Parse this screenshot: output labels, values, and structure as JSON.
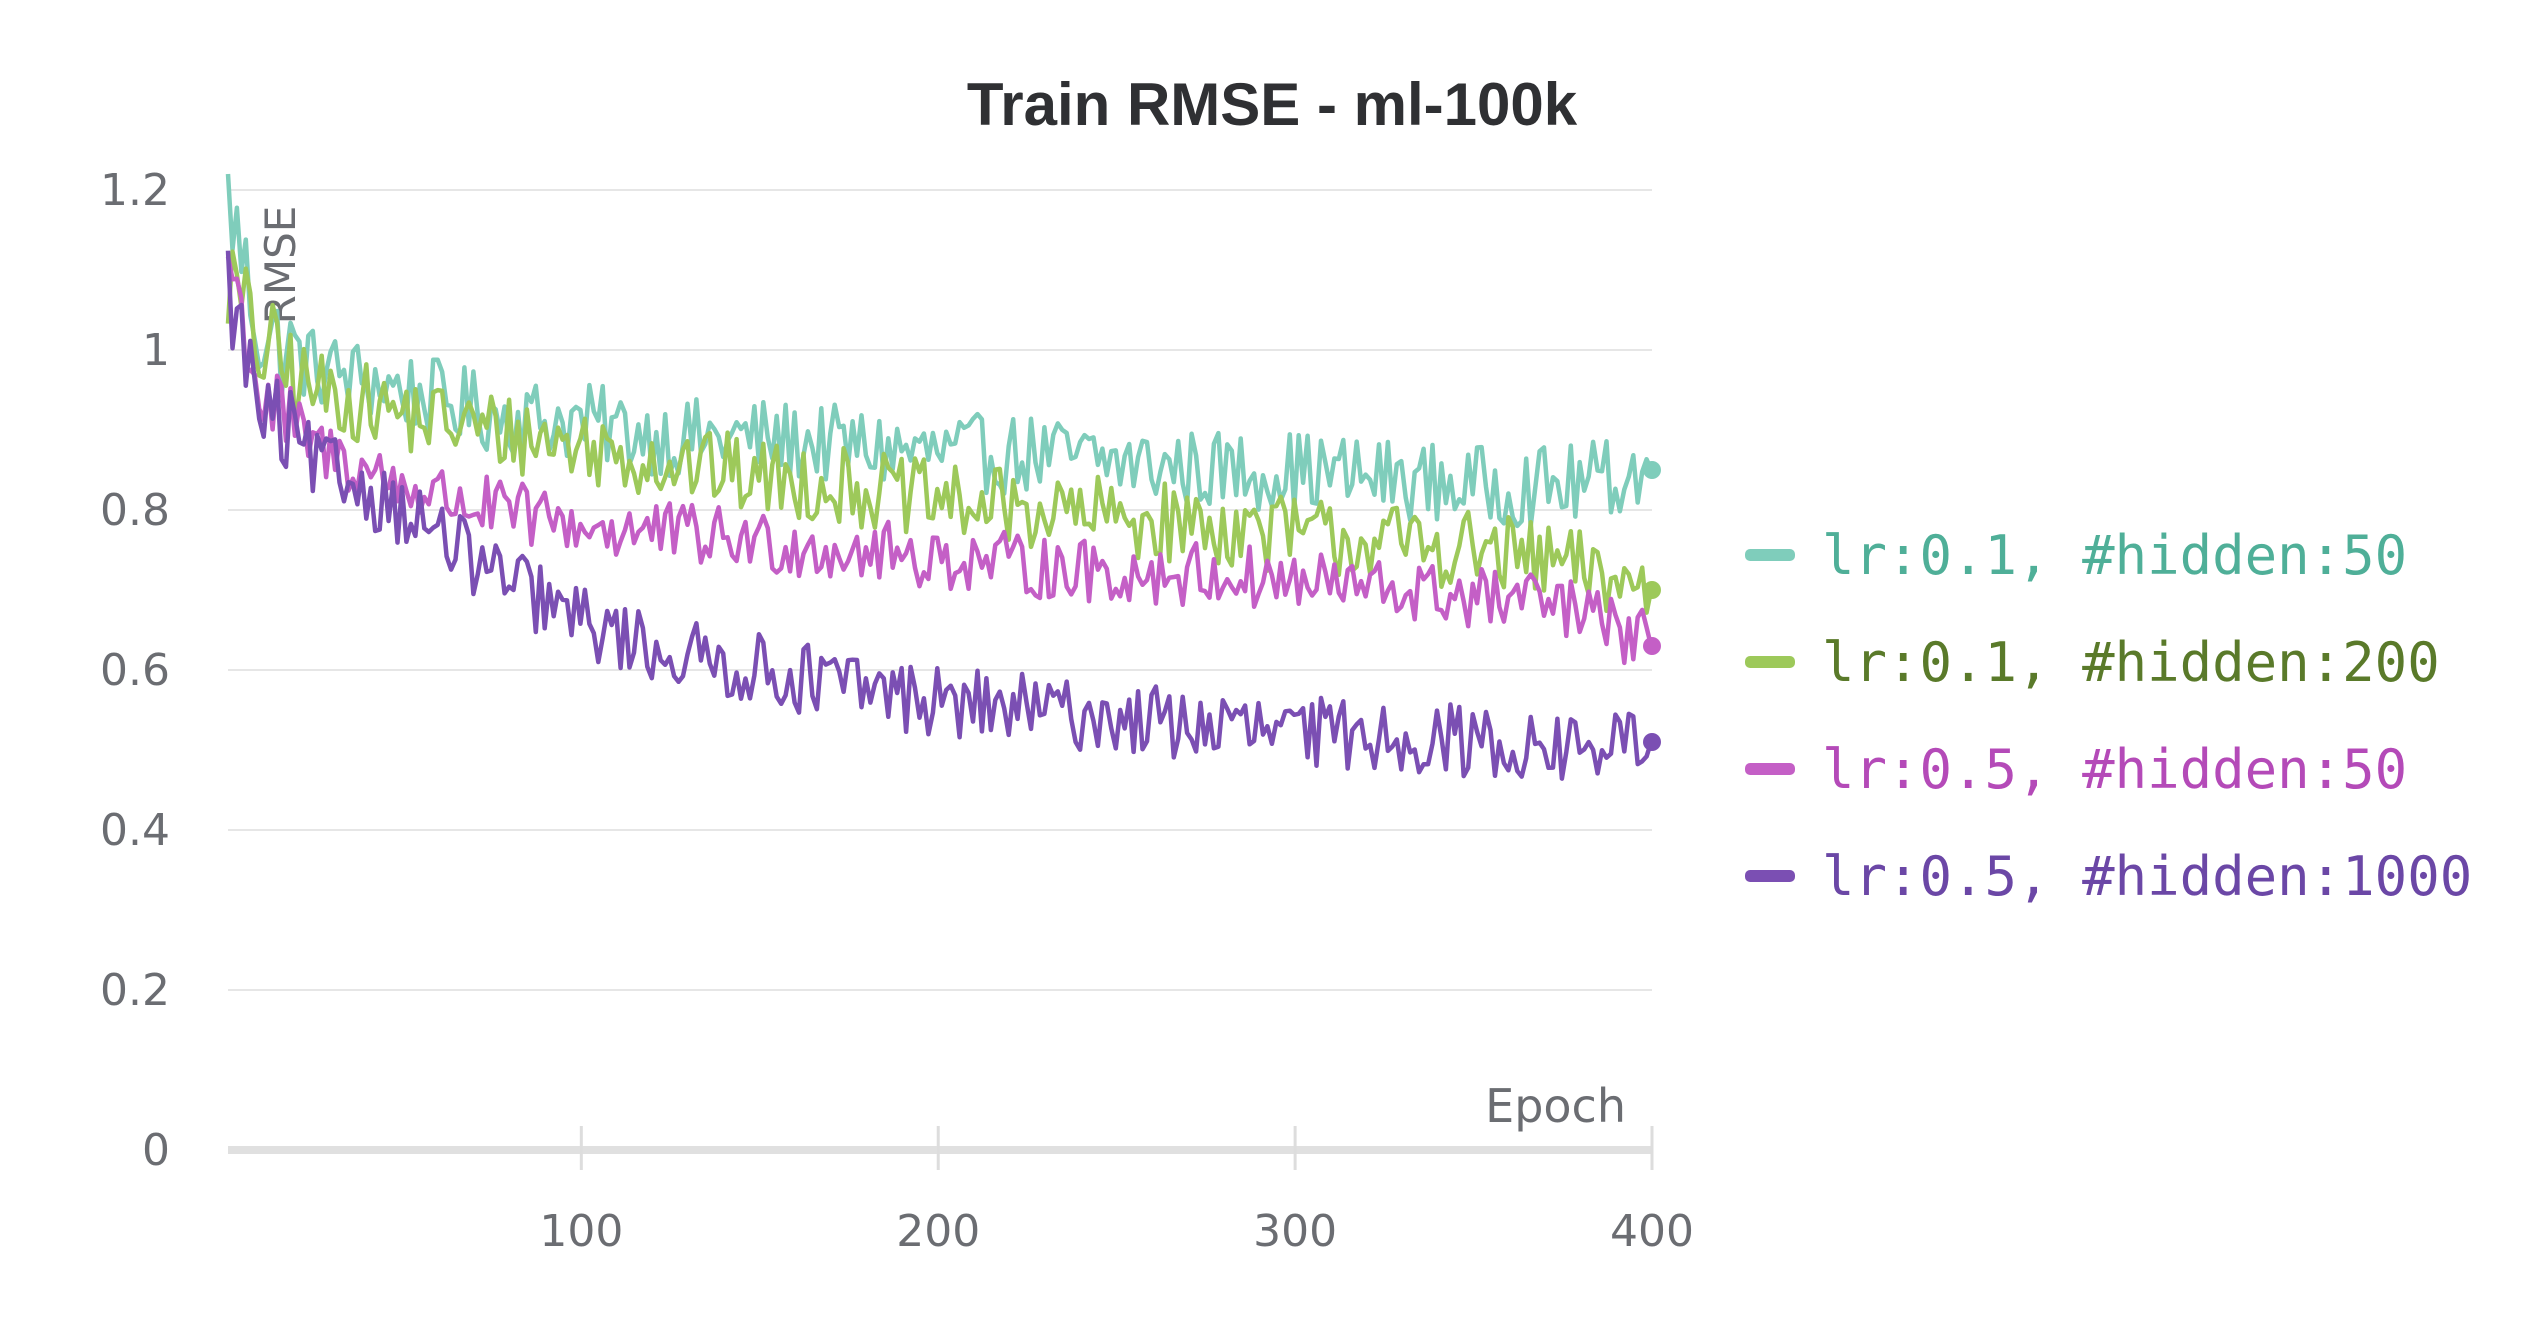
{
  "chart_data": {
    "type": "line",
    "title": "Train RMSE - ml-100k",
    "xlabel": "Epoch",
    "ylabel": "RMSE",
    "xlim": [
      1,
      400
    ],
    "ylim": [
      0,
      1.2
    ],
    "x_ticks": [
      100,
      200,
      300,
      400
    ],
    "x_tick_labels": [
      "100",
      "200",
      "300",
      "400"
    ],
    "y_ticks": [
      0,
      0.2,
      0.4,
      0.6,
      0.8,
      1,
      1.2
    ],
    "y_tick_labels": [
      "0",
      "0.2",
      "0.4",
      "0.6",
      "0.8",
      "1",
      "1.2"
    ],
    "grid": true,
    "legend_position": "right",
    "series": [
      {
        "name": "lr:0.1, #hidden:50",
        "color": "#7fcdbb",
        "text_color": "#4faf98",
        "x": [
          1,
          10,
          25,
          50,
          75,
          100,
          125,
          150,
          175,
          200,
          225,
          250,
          275,
          300,
          325,
          350,
          375,
          400
        ],
        "values": [
          1.19,
          1.02,
          0.98,
          0.95,
          0.92,
          0.91,
          0.89,
          0.89,
          0.88,
          0.87,
          0.87,
          0.86,
          0.85,
          0.85,
          0.84,
          0.83,
          0.83,
          0.85
        ]
      },
      {
        "name": "lr:0.1, #hidden:200",
        "color": "#9dc95a",
        "text_color": "#5a7a2a",
        "x": [
          1,
          10,
          25,
          50,
          75,
          100,
          125,
          150,
          175,
          200,
          225,
          250,
          275,
          300,
          325,
          350,
          375,
          400
        ],
        "values": [
          1.09,
          1.0,
          0.95,
          0.92,
          0.9,
          0.88,
          0.86,
          0.84,
          0.83,
          0.81,
          0.8,
          0.79,
          0.78,
          0.77,
          0.76,
          0.75,
          0.73,
          0.7
        ]
      },
      {
        "name": "lr:0.5, #hidden:50",
        "color": "#c45fc6",
        "text_color": "#b44ab8",
        "x": [
          1,
          10,
          25,
          50,
          75,
          100,
          125,
          150,
          175,
          200,
          225,
          250,
          275,
          300,
          325,
          350,
          375,
          400
        ],
        "values": [
          1.12,
          0.94,
          0.88,
          0.83,
          0.8,
          0.78,
          0.77,
          0.76,
          0.75,
          0.74,
          0.73,
          0.72,
          0.72,
          0.71,
          0.7,
          0.69,
          0.68,
          0.63
        ]
      },
      {
        "name": "lr:0.5, #hidden:1000",
        "color": "#7b4fb3",
        "text_color": "#6b47a6",
        "x": [
          1,
          10,
          25,
          50,
          75,
          100,
          125,
          150,
          175,
          200,
          225,
          250,
          275,
          300,
          325,
          350,
          375,
          400
        ],
        "values": [
          1.08,
          0.92,
          0.86,
          0.8,
          0.72,
          0.66,
          0.62,
          0.6,
          0.58,
          0.56,
          0.55,
          0.54,
          0.53,
          0.52,
          0.52,
          0.51,
          0.5,
          0.51
        ]
      }
    ]
  }
}
